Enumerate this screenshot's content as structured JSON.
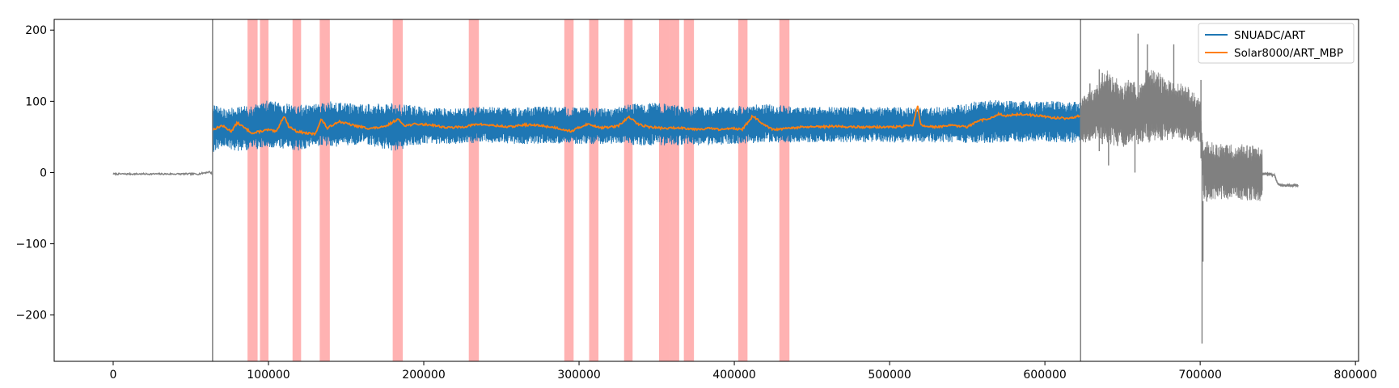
{
  "chart_data": {
    "type": "line",
    "title": "",
    "xlabel": "",
    "ylabel": "",
    "xlim": [
      -38000,
      802000
    ],
    "ylim": [
      -265,
      215
    ],
    "xticks": [
      0,
      100000,
      200000,
      300000,
      400000,
      500000,
      600000,
      700000,
      800000
    ],
    "xtick_labels": [
      "0",
      "100000",
      "200000",
      "300000",
      "400000",
      "500000",
      "600000",
      "700000",
      "800000"
    ],
    "yticks": [
      200,
      100,
      0,
      -100,
      -200
    ],
    "ytick_labels": [
      "200",
      "100",
      "0",
      "−100",
      "−200"
    ],
    "grid": false,
    "legend_position": "top-right",
    "colors": {
      "snuadc": "#1f77b4",
      "solar": "#ff7f0e",
      "gray": "#808080",
      "span": "#ff0000"
    },
    "vertical_lines": [
      64000,
      623000
    ],
    "highlight_spans": [
      [
        86500,
        93000
      ],
      [
        94500,
        100000
      ],
      [
        115500,
        121000
      ],
      [
        133000,
        139500
      ],
      [
        180000,
        186500
      ],
      [
        229000,
        235500
      ],
      [
        290500,
        296500
      ],
      [
        306500,
        312500
      ],
      [
        329000,
        334500
      ],
      [
        351500,
        358000
      ],
      [
        358000,
        364500
      ],
      [
        367500,
        374000
      ],
      [
        402500,
        408500
      ],
      [
        429000,
        435500
      ]
    ],
    "series": [
      {
        "name": "SNUADC/ART",
        "color": "#1f77b4",
        "kind": "band",
        "x": [
          64000,
          70000,
          80000,
          90000,
          100000,
          110000,
          120000,
          130000,
          140000,
          160000,
          180000,
          200000,
          220000,
          240000,
          260000,
          280000,
          300000,
          320000,
          340000,
          360000,
          380000,
          400000,
          420000,
          440000,
          460000,
          480000,
          500000,
          520000,
          540000,
          555000,
          570000,
          590000,
          610000,
          623000
        ],
        "upper": [
          98,
          90,
          92,
          95,
          102,
          97,
          95,
          96,
          100,
          96,
          98,
          92,
          90,
          93,
          91,
          93,
          92,
          90,
          99,
          96,
          92,
          93,
          97,
          92,
          93,
          92,
          92,
          91,
          93,
          100,
          102,
          100,
          101,
          100
        ],
        "lower": [
          28,
          35,
          30,
          32,
          35,
          33,
          30,
          38,
          35,
          40,
          30,
          40,
          40,
          42,
          40,
          40,
          40,
          40,
          38,
          38,
          38,
          40,
          42,
          42,
          43,
          42,
          42,
          42,
          42,
          40,
          42,
          43,
          42,
          40
        ]
      },
      {
        "name": "Solar8000/ART_MBP",
        "color": "#ff7f0e",
        "kind": "line",
        "x": [
          64000,
          70000,
          76000,
          80000,
          85000,
          90000,
          95000,
          100000,
          105000,
          110000,
          113000,
          118000,
          125000,
          130000,
          134000,
          138000,
          145000,
          155000,
          165000,
          175000,
          183000,
          188000,
          195000,
          205000,
          215000,
          225000,
          235000,
          245000,
          255000,
          265000,
          275000,
          285000,
          295000,
          305000,
          315000,
          325000,
          332000,
          338000,
          345000,
          355000,
          365000,
          375000,
          385000,
          392000,
          398000,
          405000,
          412000,
          418000,
          425000,
          435000,
          445000,
          455000,
          465000,
          475000,
          485000,
          495000,
          505000,
          515000,
          518000,
          520000,
          530000,
          540000,
          550000,
          558000,
          565000,
          570000,
          575000,
          585000,
          595000,
          605000,
          615000,
          623000
        ],
        "y": [
          60,
          66,
          58,
          70,
          62,
          55,
          58,
          60,
          57,
          80,
          65,
          58,
          55,
          54,
          75,
          62,
          72,
          66,
          62,
          64,
          75,
          66,
          68,
          67,
          63,
          64,
          68,
          66,
          64,
          67,
          66,
          63,
          58,
          68,
          63,
          65,
          78,
          68,
          64,
          62,
          63,
          61,
          62,
          60,
          63,
          60,
          80,
          68,
          60,
          62,
          64,
          64,
          65,
          64,
          64,
          64,
          64,
          66,
          95,
          66,
          64,
          66,
          64,
          73,
          76,
          82,
          80,
          82,
          80,
          77,
          76,
          80
        ]
      },
      {
        "name": "",
        "color": "#808080",
        "kind": "band",
        "x": [
          623000,
          630000,
          640000,
          650000,
          655000,
          660000,
          665000,
          670000,
          680000,
          690000,
          700000,
          701000,
          702000,
          705000,
          710000,
          720000,
          730000,
          740000
        ],
        "upper": [
          105,
          115,
          145,
          125,
          135,
          120,
          150,
          145,
          130,
          125,
          105,
          60,
          40,
          45,
          40,
          40,
          40,
          35
        ],
        "lower": [
          40,
          45,
          40,
          35,
          40,
          45,
          40,
          45,
          45,
          45,
          40,
          10,
          -40,
          -42,
          -38,
          -38,
          -40,
          -40
        ]
      }
    ],
    "spikes": [
      {
        "x": 623000,
        "from": 40,
        "to": 105
      },
      {
        "x": 629000,
        "from": 45,
        "to": 125
      },
      {
        "x": 635000,
        "from": 30,
        "to": 145
      },
      {
        "x": 637000,
        "from": 40,
        "to": 140
      },
      {
        "x": 641000,
        "from": 10,
        "to": 90
      },
      {
        "x": 658000,
        "from": 0,
        "to": 120
      },
      {
        "x": 660000,
        "from": 40,
        "to": 195
      },
      {
        "x": 666000,
        "from": 50,
        "to": 180
      },
      {
        "x": 683000,
        "from": 50,
        "to": 180
      },
      {
        "x": 700500,
        "from": 20,
        "to": 130
      },
      {
        "x": 701200,
        "from": -240,
        "to": 30
      },
      {
        "x": 701800,
        "from": -125,
        "to": -40
      }
    ],
    "gray_flat_segments": [
      {
        "x": [
          0,
          20000,
          40000,
          55000,
          62000,
          64000
        ],
        "y": [
          -2,
          -2,
          -2,
          -2,
          1,
          -2
        ]
      },
      {
        "x": [
          740000,
          745000,
          748000,
          750000,
          753000,
          758000,
          763000
        ],
        "y": [
          -2,
          -2,
          -4,
          -16,
          -18,
          -18,
          -18
        ]
      }
    ]
  }
}
